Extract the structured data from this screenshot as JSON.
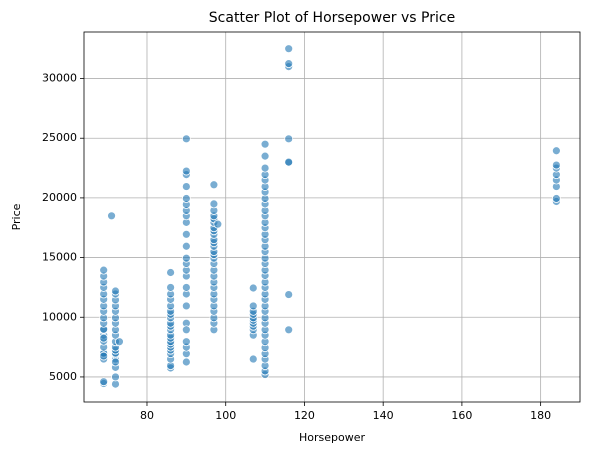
{
  "chart_data": {
    "type": "scatter",
    "title": "Scatter Plot of Horsepower vs Price",
    "x_label": "Horsepower",
    "y_label": "Price",
    "color": "#1f77b4",
    "grid": true,
    "xlim": [
      64,
      190
    ],
    "ylim": [
      2900,
      33900
    ],
    "xticks": [
      80,
      100,
      120,
      140,
      160,
      180
    ],
    "yticks": [
      5000,
      10000,
      15000,
      20000,
      25000,
      30000
    ],
    "x": [
      69,
      69,
      69,
      69,
      69,
      69,
      69,
      69,
      69,
      69,
      69,
      69,
      69,
      69,
      69,
      69,
      69,
      69,
      69,
      69,
      69,
      69,
      71,
      72,
      72,
      72,
      72,
      72,
      72,
      72,
      72,
      72,
      72,
      72,
      72,
      72,
      72,
      72,
      72,
      72,
      72,
      72,
      73,
      86,
      86,
      86,
      86,
      86,
      86,
      86,
      86,
      86,
      86,
      86,
      86,
      86,
      86,
      86,
      86,
      86,
      86,
      86,
      86,
      86,
      90,
      90,
      90,
      90,
      90,
      90,
      90,
      90,
      90,
      90,
      90,
      90,
      90,
      90,
      90,
      90,
      90,
      90,
      90,
      90,
      90,
      90,
      90,
      90,
      97,
      97,
      97,
      97,
      97,
      97,
      97,
      97,
      97,
      97,
      97,
      97,
      97,
      97,
      97,
      97,
      97,
      97,
      97,
      97,
      97,
      97,
      97,
      97,
      97,
      97,
      97,
      98,
      107,
      107,
      107,
      107,
      107,
      107,
      107,
      107,
      107,
      107,
      107,
      110,
      110,
      110,
      110,
      110,
      110,
      110,
      110,
      110,
      110,
      110,
      110,
      110,
      110,
      110,
      110,
      110,
      110,
      110,
      110,
      110,
      110,
      110,
      110,
      110,
      110,
      110,
      110,
      110,
      110,
      110,
      110,
      110,
      110,
      110,
      110,
      110,
      110,
      116,
      116,
      116,
      116,
      116,
      116,
      116,
      116,
      184,
      184,
      184,
      184,
      184,
      184,
      184,
      184
    ],
    "values": [
      4450,
      4600,
      6500,
      6950,
      7000,
      7500,
      8000,
      8500,
      8950,
      9000,
      9500,
      9950,
      10500,
      10950,
      11500,
      11950,
      12500,
      12950,
      13450,
      13950,
      6750,
      8250,
      18500,
      4400,
      5000,
      5800,
      6500,
      6900,
      7000,
      7250,
      7500,
      7950,
      8500,
      8950,
      9500,
      9950,
      10500,
      10950,
      11450,
      11950,
      12200,
      6250,
      7950,
      5750,
      5950,
      6500,
      6950,
      7250,
      7500,
      7750,
      7950,
      8250,
      8500,
      8950,
      9250,
      9500,
      9950,
      10250,
      10500,
      10950,
      11500,
      11950,
      12500,
      13750,
      6250,
      6950,
      7500,
      7950,
      9500,
      10950,
      11950,
      12500,
      13450,
      13950,
      14500,
      14950,
      15950,
      16950,
      17950,
      18500,
      18950,
      19450,
      19950,
      20950,
      21950,
      22250,
      24950,
      8950,
      8950,
      9500,
      9950,
      10500,
      10950,
      11500,
      11950,
      12500,
      12950,
      13450,
      13950,
      14500,
      14950,
      15250,
      15500,
      15950,
      16250,
      16500,
      16950,
      17250,
      17500,
      17950,
      18250,
      18500,
      18950,
      19500,
      21100,
      17800,
      6500,
      8500,
      8950,
      9250,
      9500,
      9750,
      9950,
      10250,
      10500,
      10950,
      12450,
      5200,
      5500,
      5950,
      6500,
      6950,
      7450,
      7950,
      8500,
      8950,
      9500,
      9950,
      10500,
      10950,
      11500,
      11950,
      12500,
      12950,
      13500,
      13950,
      14500,
      14950,
      15500,
      15950,
      16500,
      16950,
      17500,
      17950,
      18500,
      18950,
      19500,
      19950,
      20500,
      20950,
      21500,
      21950,
      22500,
      23500,
      24500,
      8950,
      11900,
      22950,
      23000,
      24950,
      31000,
      31250,
      32500,
      19700,
      19950,
      20950,
      21500,
      21950,
      22500,
      22750,
      23950
    ]
  }
}
